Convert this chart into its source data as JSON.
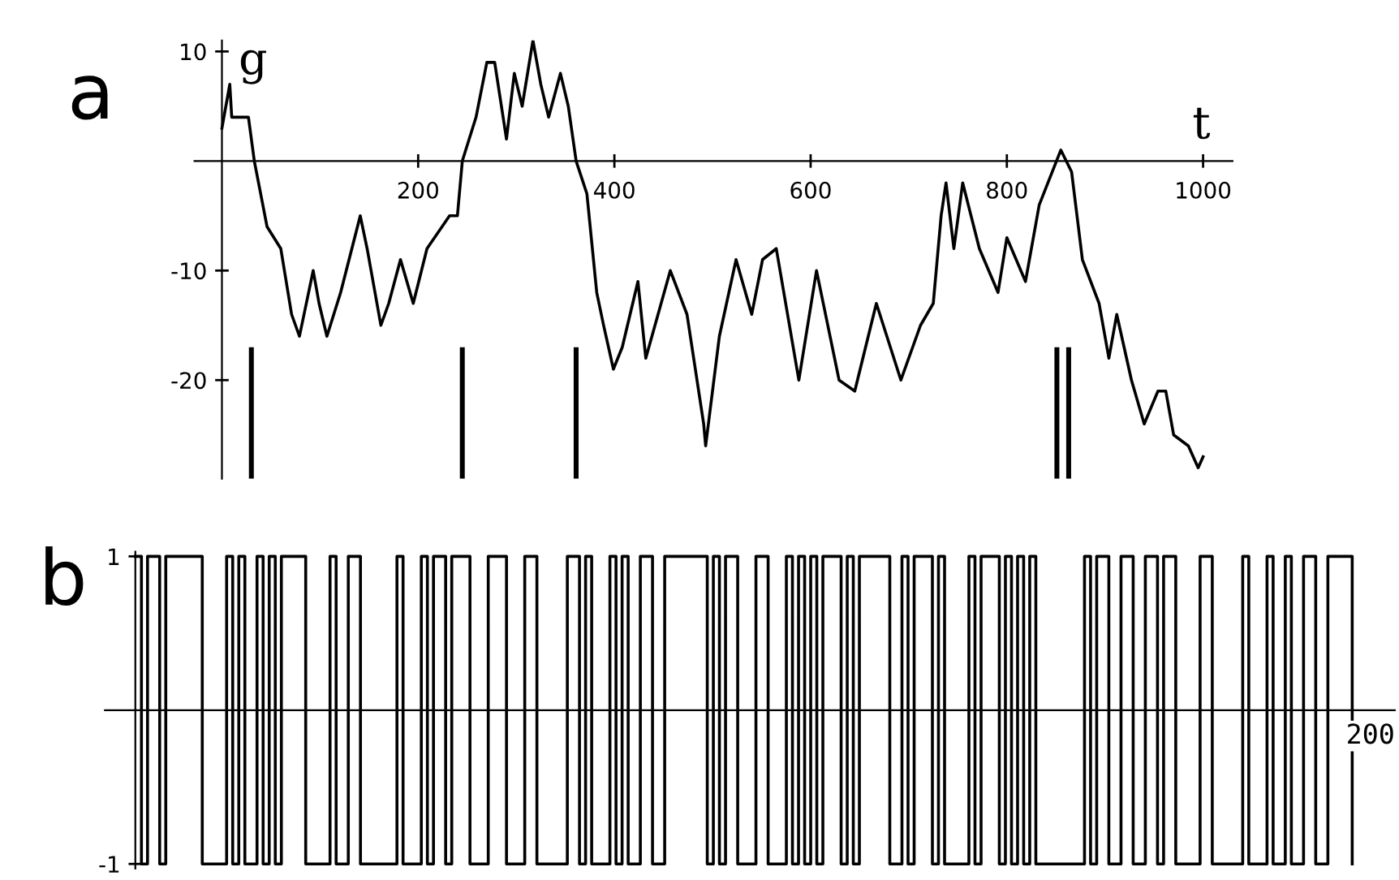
{
  "chart_data": [
    {
      "type": "line",
      "title": "a",
      "xlabel": "t",
      "ylabel": "g",
      "xlim": [
        -28,
        1030
      ],
      "ylim": [
        -29,
        11
      ],
      "xticks": [
        200,
        400,
        600,
        800,
        1000
      ],
      "yticks": [
        10,
        -10,
        -20
      ],
      "grid": false,
      "legend": false,
      "series": [
        {
          "color": "#000000",
          "x": [
            0,
            8,
            10,
            27,
            33,
            46,
            60,
            71,
            79,
            93,
            99,
            107,
            121,
            141,
            148,
            162,
            170,
            182,
            195,
            209,
            232,
            240,
            245,
            259,
            270,
            278,
            290,
            298,
            306,
            317,
            325,
            333,
            345,
            353,
            361,
            372,
            382,
            389,
            399,
            408,
            424,
            432,
            457,
            474,
            491,
            493,
            507,
            524,
            540,
            551,
            565,
            588,
            606,
            629,
            645,
            667,
            692,
            712,
            725,
            733,
            738,
            746,
            755,
            772,
            791,
            800,
            819,
            833,
            855,
            866,
            877,
            894,
            904,
            912,
            927,
            940,
            954,
            962,
            970,
            985,
            995,
            1000
          ],
          "values": [
            3,
            7,
            4,
            4,
            0,
            -6,
            -8,
            -14,
            -16,
            -10,
            -13,
            -16,
            -12,
            -5,
            -8,
            -15,
            -13,
            -9,
            -13,
            -8,
            -5,
            -5,
            0,
            4,
            9,
            9,
            2,
            8,
            5,
            11,
            7,
            4,
            8,
            5,
            0,
            -3,
            -12,
            -15,
            -19,
            -17,
            -11,
            -18,
            -10,
            -14,
            -24,
            -26,
            -16,
            -9,
            -14,
            -9,
            -8,
            -20,
            -10,
            -20,
            -21,
            -13,
            -20,
            -15,
            -13,
            -5,
            -2,
            -8,
            -2,
            -8,
            -12,
            -7,
            -11,
            -4,
            1,
            -1,
            -9,
            -13,
            -18,
            -14,
            -20,
            -24,
            -21,
            -21,
            -25,
            -26,
            -28,
            -27
          ]
        },
        {
          "type": "bar",
          "color": "#000000",
          "x": [
            30,
            245,
            361,
            851,
            863
          ],
          "base": [
            -29,
            -29,
            -29,
            -29,
            -29
          ],
          "values": [
            12,
            12,
            12,
            12,
            12
          ]
        }
      ]
    },
    {
      "type": "step",
      "title": "b",
      "tick_labels": "y",
      "ylim": [
        -1.03,
        1.03
      ],
      "yticks": [
        1,
        -1
      ],
      "grid": false,
      "legend": false,
      "annotations": [
        "200"
      ],
      "categories": [
        null,
        null,
        null,
        null,
        null,
        null,
        null,
        null,
        null,
        null,
        null,
        null,
        null,
        null,
        null,
        null,
        null,
        null,
        null,
        null,
        null,
        null,
        null,
        null,
        null,
        null,
        null,
        null,
        null,
        null,
        null,
        null,
        null,
        null,
        null,
        null,
        null,
        null,
        null,
        null,
        null,
        null,
        null,
        null,
        null,
        null,
        null,
        null,
        null,
        null,
        null,
        null,
        null,
        null,
        null,
        null,
        null,
        null,
        null,
        null,
        null,
        null,
        null,
        null,
        null,
        null,
        null,
        null,
        null,
        null,
        null,
        null,
        null,
        null,
        null,
        null,
        null,
        null,
        null,
        null,
        null,
        null,
        null,
        null,
        null,
        null,
        null,
        null,
        null,
        null,
        null,
        null,
        null,
        null,
        null,
        null,
        null,
        null,
        null,
        null,
        null,
        null,
        null,
        null,
        null,
        null,
        null,
        null,
        null,
        null,
        null,
        null,
        null,
        null,
        null,
        null,
        null,
        null,
        null,
        null,
        null,
        null,
        null,
        null,
        null,
        null,
        null,
        null,
        null,
        null,
        null,
        null,
        null,
        null,
        null,
        null,
        null,
        null,
        null,
        null,
        null,
        null,
        null,
        null,
        null,
        null,
        null,
        null,
        null,
        null,
        null,
        null,
        null,
        null,
        null,
        null,
        null,
        null,
        null,
        null,
        null,
        null,
        null,
        null,
        null,
        null,
        null,
        null,
        null,
        null,
        null,
        null,
        null,
        null,
        null,
        null,
        null,
        null,
        null,
        null,
        null,
        null,
        null,
        null,
        null,
        null,
        null,
        null,
        null,
        null,
        null,
        null,
        null,
        null,
        null,
        null,
        null,
        null,
        null,
        null,
        null
      ],
      "series": [
        {
          "color": "#000000",
          "values": [
            1,
            -1,
            1,
            1,
            -1,
            1,
            1,
            1,
            1,
            1,
            1,
            -1,
            -1,
            -1,
            -1,
            1,
            -1,
            1,
            -1,
            -1,
            1,
            -1,
            1,
            -1,
            1,
            1,
            1,
            1,
            -1,
            -1,
            -1,
            -1,
            1,
            -1,
            -1,
            1,
            1,
            -1,
            -1,
            -1,
            -1,
            -1,
            -1,
            1,
            -1,
            -1,
            -1,
            1,
            -1,
            1,
            1,
            -1,
            1,
            1,
            1,
            -1,
            -1,
            -1,
            1,
            1,
            1,
            -1,
            -1,
            -1,
            1,
            1,
            -1,
            -1,
            -1,
            -1,
            -1,
            1,
            1,
            -1,
            1,
            -1,
            -1,
            -1,
            1,
            -1,
            1,
            -1,
            -1,
            1,
            1,
            -1,
            -1,
            1,
            1,
            1,
            1,
            1,
            1,
            1,
            -1,
            1,
            -1,
            1,
            1,
            -1,
            -1,
            -1,
            1,
            1,
            -1,
            -1,
            -1,
            1,
            -1,
            1,
            -1,
            1,
            -1,
            1,
            1,
            1,
            -1,
            1,
            -1,
            1,
            1,
            1,
            1,
            1,
            -1,
            -1,
            1,
            -1,
            1,
            1,
            1,
            -1,
            1,
            -1,
            -1,
            -1,
            -1,
            1,
            -1,
            1,
            1,
            1,
            -1,
            1,
            -1,
            1,
            -1,
            1,
            -1,
            -1,
            -1,
            -1,
            -1,
            -1,
            -1,
            -1,
            1,
            -1,
            1,
            1,
            -1,
            -1,
            1,
            1,
            -1,
            -1,
            1,
            1,
            -1,
            1,
            1,
            -1,
            -1,
            -1,
            -1,
            1,
            1,
            -1,
            -1,
            -1,
            -1,
            -1,
            1,
            -1,
            -1,
            -1,
            1,
            -1,
            -1,
            1,
            -1,
            -1,
            1,
            1,
            -1,
            -1,
            1,
            1,
            1,
            1,
            -1
          ]
        }
      ]
    }
  ]
}
